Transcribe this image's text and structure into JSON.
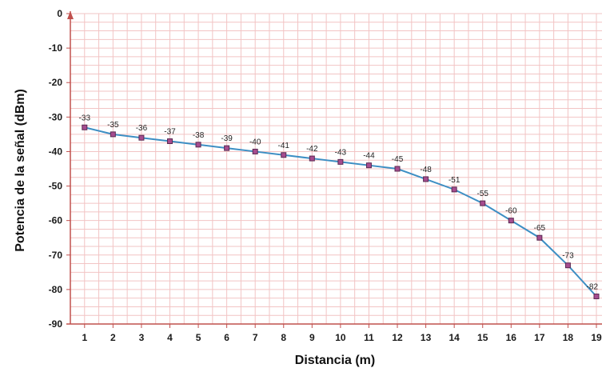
{
  "chart_data": {
    "type": "line",
    "title": "",
    "xlabel": "Distancia (m)",
    "ylabel": "Potencia de la señal (dBm)",
    "x": [
      1,
      2,
      3,
      4,
      5,
      6,
      7,
      8,
      9,
      10,
      11,
      12,
      13,
      14,
      15,
      16,
      17,
      18,
      19
    ],
    "y": [
      -33,
      -35,
      -36,
      -37,
      -38,
      -39,
      -40,
      -41,
      -42,
      -43,
      -44,
      -45,
      -48,
      -51,
      -55,
      -60,
      -65,
      -73,
      -82
    ],
    "data_labels": [
      "-33",
      "-35",
      "-36",
      "-37",
      "-38",
      "-39",
      "-40",
      "-41",
      "-42",
      "-43",
      "-44",
      "-45",
      "-48",
      "-51",
      "-55",
      "-60",
      "-65",
      "-73",
      "-82"
    ],
    "xlim": [
      0.5,
      19
    ],
    "ylim": [
      -90,
      0
    ],
    "y_ticks": [
      0,
      -10,
      -20,
      -30,
      -40,
      -50,
      -60,
      -70,
      -80,
      -90
    ],
    "y_tick_labels": [
      "0",
      "-10",
      "-20",
      "-30",
      "-40",
      "-50",
      "-60",
      "-70",
      "-80",
      "-90"
    ],
    "x_ticks": [
      1,
      2,
      3,
      4,
      5,
      6,
      7,
      8,
      9,
      10,
      11,
      12,
      13,
      14,
      15,
      16,
      17,
      18,
      19
    ],
    "x_tick_labels": [
      "1",
      "2",
      "3",
      "4",
      "5",
      "6",
      "7",
      "8",
      "9",
      "10",
      "11",
      "12",
      "13",
      "14",
      "15",
      "16",
      "17",
      "18",
      "19"
    ],
    "grid": true,
    "legend": "none",
    "colors": {
      "line": "#3d8fc4",
      "marker_fill": "#a64c8f",
      "marker_stroke": "#5a2a52",
      "grid": "#f2c4c4",
      "axis": "#c0504d"
    }
  }
}
